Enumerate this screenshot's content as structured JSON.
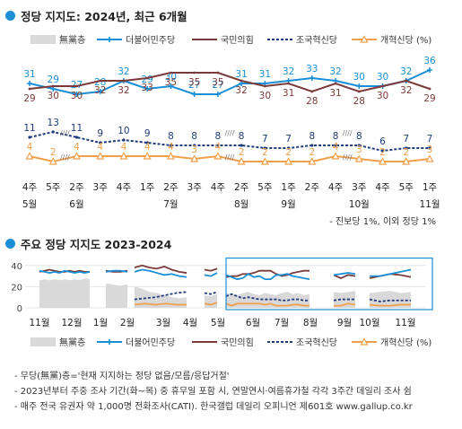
{
  "section1": {
    "title": "정당 지지도: 2024년, 최근 6개월"
  },
  "section2": {
    "title": "주요 정당 지지도 2023-2024"
  },
  "colors": {
    "accent": "#1a8fd6",
    "minjoo": "#1a8fd6",
    "ppp": "#7b3a3a",
    "rebuild": "#1f3c7a",
    "reform": "#f0a04b",
    "none": "#d9d9d9"
  },
  "legend": [
    {
      "key": "none",
      "label": "無黨층"
    },
    {
      "key": "minjoo",
      "label": "더불어민주당"
    },
    {
      "key": "ppp",
      "label": "국민의힘"
    },
    {
      "key": "rebuild",
      "label": "조국혁신당"
    },
    {
      "key": "reform",
      "label": "개혁신당 (%)"
    }
  ],
  "footnote_right": "- 진보당 1%, 이외 정당 1%",
  "notes": [
    "- 무당(無黨)층='현재 지지하는 정당 없음/모름/응답거절'",
    "- 2023년부터 주중 조사 기간(화~목) 중 휴무일 포함 시, 연말연시·여름휴가철 각각 3주간 데일리 조사 쉼",
    "- 매주 전국 유권자 약 1,000명 전화조사(CATI). 한국갤럽 데일리 오피니언 제601호 www.gallup.co.kr"
  ],
  "chart_data": [
    {
      "type": "line",
      "x_week_labels": [
        "4주",
        "5주",
        "2주",
        "3주",
        "4주",
        "1주",
        "2주",
        "3주",
        "4주",
        "2주",
        "5주",
        "1주",
        "2주",
        "4주",
        "3주",
        "4주",
        "5주",
        "1주"
      ],
      "x_month_labels": [
        {
          "at": 0,
          "label": "5월"
        },
        {
          "at": 2,
          "label": "6월"
        },
        {
          "at": 6,
          "label": "7월"
        },
        {
          "at": 9,
          "label": "8월"
        },
        {
          "at": 11,
          "label": "9월"
        },
        {
          "at": 14,
          "label": "10월"
        },
        {
          "at": 17,
          "label": "11월"
        }
      ],
      "ylim": [
        0,
        40
      ],
      "series": [
        {
          "name": "더불어민주당",
          "key": "minjoo",
          "values": [
            31,
            29,
            27,
            28,
            32,
            29,
            30,
            27,
            27,
            31,
            31,
            32,
            33,
            32,
            30,
            30,
            32,
            36
          ]
        },
        {
          "name": "국민의힘",
          "key": "ppp",
          "values": [
            29,
            30,
            30,
            32,
            32,
            33,
            35,
            35,
            35,
            32,
            30,
            31,
            28,
            31,
            28,
            30,
            32,
            29
          ]
        },
        {
          "name": "조국혁신당",
          "key": "rebuild",
          "values": [
            11,
            13,
            11,
            9,
            10,
            9,
            8,
            8,
            8,
            8,
            7,
            7,
            8,
            8,
            8,
            6,
            7,
            7
          ]
        },
        {
          "name": "개혁신당",
          "key": "reform",
          "values": [
            4,
            2,
            4,
            4,
            4,
            4,
            4,
            3,
            4,
            2,
            2,
            2,
            2,
            4,
            3,
            2,
            2,
            3
          ]
        }
      ],
      "gap_markers_after": [
        1,
        8,
        13
      ]
    },
    {
      "type": "line",
      "x_month_labels": [
        "11월",
        "12월",
        "1월",
        "2월",
        "3월",
        "4월",
        "5월",
        "6월",
        "7월",
        "8월",
        "9월",
        "10월",
        "11월"
      ],
      "y_ticks": [
        0,
        20,
        40
      ],
      "ylim": [
        0,
        40
      ],
      "highlight_range": "5월~8월",
      "segments": [
        {
          "none": [
            26,
            27,
            26,
            27,
            26,
            27,
            26,
            27,
            26,
            28,
            27
          ],
          "minjoo": [
            35,
            34,
            33,
            34,
            33,
            35,
            34,
            33,
            34,
            33,
            34
          ],
          "ppp": [
            34,
            35,
            36,
            35,
            34,
            34,
            35,
            34,
            35,
            34,
            34
          ]
        },
        {
          "none": [
            23,
            22,
            21,
            22
          ],
          "minjoo": [
            34,
            35,
            35,
            34
          ],
          "ppp": [
            35,
            34,
            34,
            35
          ]
        },
        {
          "none": [
            20,
            18,
            15,
            14,
            12,
            10,
            9,
            10
          ],
          "minjoo": [
            34,
            36,
            35,
            33,
            31,
            32,
            30,
            29
          ],
          "ppp": [
            38,
            40,
            38,
            37,
            39,
            36,
            34,
            33
          ],
          "rebuild": [
            8,
            9,
            10,
            12,
            14,
            15
          ],
          "reform": [
            3,
            4,
            3,
            4,
            3,
            3
          ]
        },
        {
          "none": [
            12,
            11,
            13
          ],
          "minjoo": [
            31,
            30,
            33
          ],
          "ppp": [
            36,
            35,
            37
          ],
          "rebuild": [
            14,
            13,
            15
          ],
          "reform": [
            4,
            3,
            5
          ]
        },
        {
          "none": [
            14,
            13,
            12,
            14,
            15,
            13,
            12,
            14,
            13,
            12,
            14,
            15,
            13,
            14,
            12,
            13
          ],
          "minjoo": [
            31,
            29,
            27,
            28,
            32,
            29,
            30,
            27,
            27,
            31,
            31,
            32,
            30,
            29,
            28,
            27
          ],
          "ppp": [
            29,
            30,
            30,
            32,
            32,
            33,
            35,
            35,
            35,
            32,
            30,
            31,
            33,
            34,
            35,
            35
          ],
          "rebuild": [
            11,
            13,
            11,
            9,
            10,
            9,
            8,
            8,
            8,
            8,
            7,
            7,
            8,
            8,
            7,
            7
          ],
          "reform": [
            4,
            2,
            4,
            4,
            4,
            4,
            4,
            3,
            4,
            2,
            2,
            2,
            3,
            3,
            2,
            2
          ]
        },
        {
          "none": [
            15,
            14,
            15,
            16
          ],
          "minjoo": [
            31,
            32,
            33,
            32
          ],
          "ppp": [
            31,
            28,
            31,
            30
          ],
          "rebuild": [
            7,
            8,
            8,
            8
          ],
          "reform": [
            2,
            2,
            4,
            3
          ]
        },
        {
          "none": [
            14,
            15,
            16,
            14,
            15
          ],
          "minjoo": [
            30,
            30,
            32,
            34,
            36
          ],
          "ppp": [
            28,
            30,
            32,
            31,
            29
          ],
          "rebuild": [
            8,
            6,
            7,
            7,
            7
          ],
          "reform": [
            3,
            2,
            2,
            3,
            3
          ]
        }
      ]
    }
  ]
}
